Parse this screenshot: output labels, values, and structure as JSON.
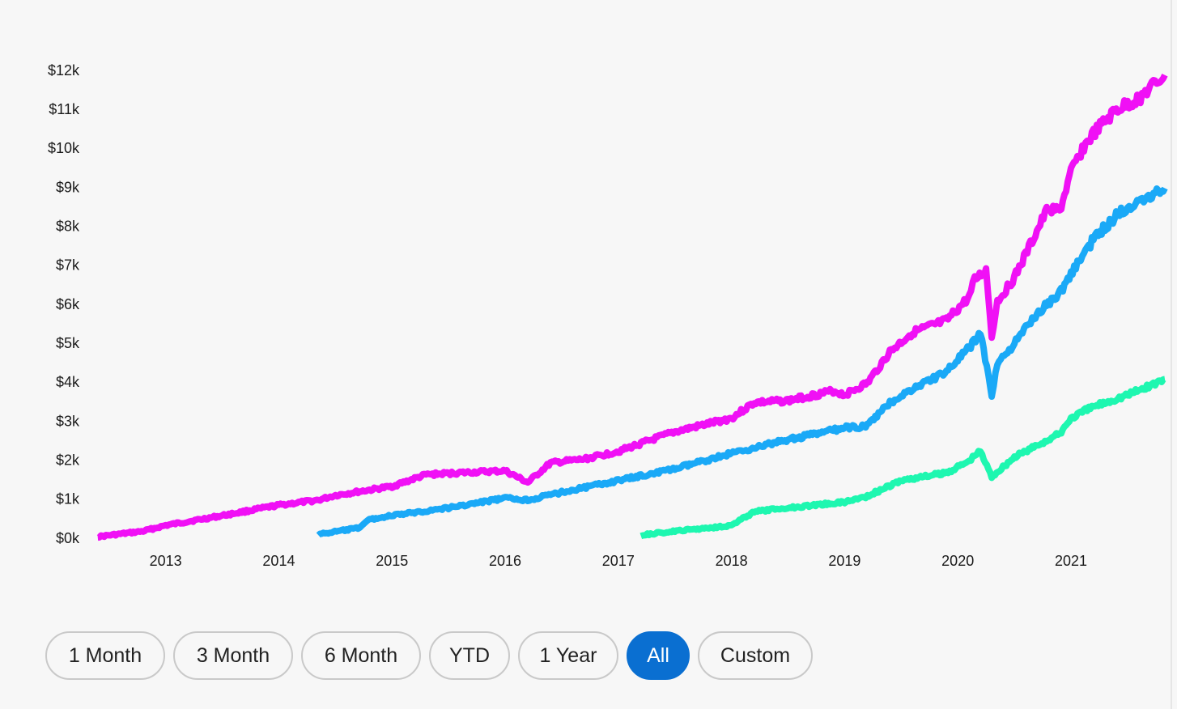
{
  "chart_data": {
    "type": "line",
    "x_ticks": [
      "2013",
      "2014",
      "2015",
      "2016",
      "2017",
      "2018",
      "2019",
      "2020",
      "2021"
    ],
    "y_ticks": [
      "$0k",
      "$1k",
      "$2k",
      "$3k",
      "$4k",
      "$5k",
      "$6k",
      "$7k",
      "$8k",
      "$9k",
      "$10k",
      "$11k",
      "$12k"
    ],
    "ylim": [
      0,
      12000
    ],
    "xlim": [
      2012.38,
      2021.88
    ],
    "grid": false,
    "legend": "none",
    "series": [
      {
        "color": "#f010f5",
        "x": [
          2012.4,
          2012.8,
          2013.0,
          2013.5,
          2014.0,
          2014.35,
          2014.5,
          2015.0,
          2015.3,
          2015.6,
          2016.0,
          2016.2,
          2016.4,
          2016.7,
          2017.0,
          2017.5,
          2018.0,
          2018.2,
          2018.5,
          2018.9,
          2019.0,
          2019.2,
          2019.4,
          2019.6,
          2019.9,
          2020.1,
          2020.15,
          2020.25,
          2020.3,
          2020.35,
          2020.5,
          2020.7,
          2020.8,
          2020.9,
          2021.0,
          2021.1,
          2021.2,
          2021.4,
          2021.6,
          2021.83
        ],
        "y": [
          60,
          200,
          350,
          600,
          870,
          1000,
          1120,
          1350,
          1650,
          1700,
          1750,
          1450,
          1950,
          2050,
          2250,
          2750,
          3100,
          3500,
          3550,
          3800,
          3700,
          4000,
          4800,
          5300,
          5600,
          6200,
          6650,
          6900,
          5200,
          6100,
          6700,
          7900,
          8500,
          8400,
          9400,
          10000,
          10400,
          11000,
          11300,
          11900
        ]
      },
      {
        "color": "#1aa9f7",
        "x": [
          2014.35,
          2014.7,
          2014.8,
          2015.0,
          2015.5,
          2016.0,
          2016.2,
          2016.5,
          2017.0,
          2017.5,
          2018.0,
          2018.5,
          2019.0,
          2019.2,
          2019.4,
          2019.6,
          2019.9,
          2020.1,
          2020.2,
          2020.3,
          2020.35,
          2020.5,
          2020.7,
          2020.9,
          2021.0,
          2021.2,
          2021.4,
          2021.6,
          2021.83
        ],
        "y": [
          120,
          280,
          500,
          600,
          800,
          1050,
          1000,
          1200,
          1500,
          1800,
          2200,
          2550,
          2850,
          2900,
          3500,
          3850,
          4300,
          4900,
          5300,
          3700,
          4500,
          5000,
          5800,
          6300,
          6800,
          7700,
          8300,
          8700,
          9000
        ]
      },
      {
        "color": "#1ef7b0",
        "x": [
          2017.2,
          2017.5,
          2018.0,
          2018.2,
          2018.5,
          2019.0,
          2019.2,
          2019.5,
          2019.9,
          2020.1,
          2020.15,
          2020.2,
          2020.3,
          2020.5,
          2020.9,
          2021.0,
          2021.2,
          2021.5,
          2021.83
        ],
        "y": [
          100,
          200,
          350,
          700,
          800,
          950,
          1100,
          1500,
          1700,
          2000,
          2150,
          2250,
          1600,
          2100,
          2700,
          3100,
          3400,
          3700,
          4100
        ]
      }
    ]
  },
  "range_buttons": [
    {
      "label": "1 Month",
      "active": false
    },
    {
      "label": "3 Month",
      "active": false
    },
    {
      "label": "6 Month",
      "active": false
    },
    {
      "label": "YTD",
      "active": false
    },
    {
      "label": "1 Year",
      "active": false
    },
    {
      "label": "All",
      "active": true
    },
    {
      "label": "Custom",
      "active": false
    }
  ]
}
